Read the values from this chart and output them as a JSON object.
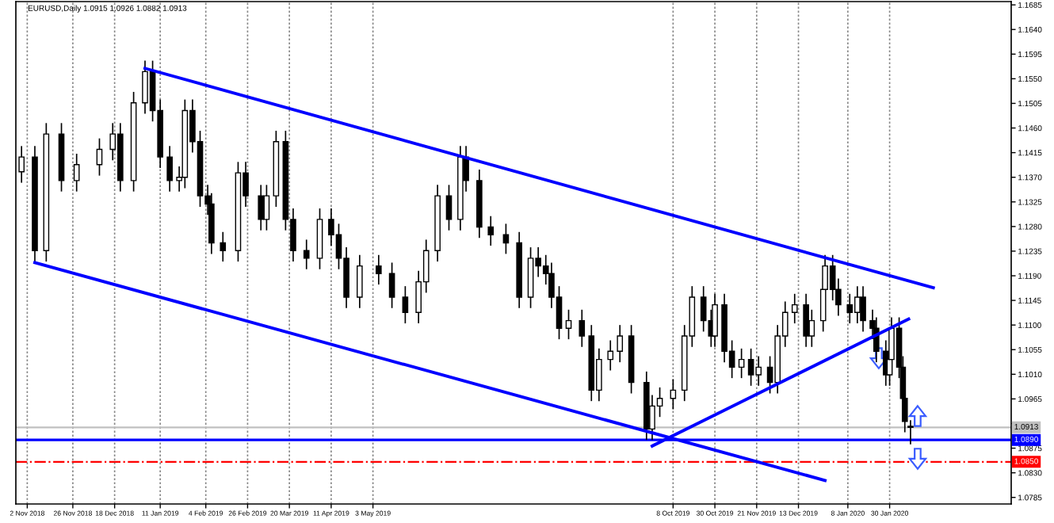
{
  "chart_data": {
    "type": "candlestick",
    "title": "EURUSD,Daily 1.0915 1.0926 1.0882 1.0913",
    "x": [
      "2018-10-30",
      "2018-11-06",
      "2018-11-12",
      "2018-11-20",
      "2018-11-28",
      "2018-12-10",
      "2018-12-17",
      "2018-12-21",
      "2018-12-28",
      "2019-01-03",
      "2019-01-07",
      "2019-01-11",
      "2019-01-16",
      "2019-01-21",
      "2019-01-24",
      "2019-01-28",
      "2019-02-01",
      "2019-02-05",
      "2019-02-07",
      "2019-02-13",
      "2019-02-21",
      "2019-02-25",
      "2019-03-05",
      "2019-03-08",
      "2019-03-13",
      "2019-03-18",
      "2019-03-22",
      "2019-03-29",
      "2019-04-05",
      "2019-04-11",
      "2019-04-15",
      "2019-04-19",
      "2019-04-26",
      "2019-05-06",
      "2019-05-13",
      "2019-05-20",
      "2019-05-27",
      "2019-05-31",
      "2019-06-06",
      "2019-06-12",
      "2019-06-18",
      "2019-06-21",
      "2019-06-28",
      "2019-07-04",
      "2019-07-12",
      "2019-07-19",
      "2019-07-25",
      "2019-07-29",
      "2019-08-02",
      "2019-08-05",
      "2019-08-09",
      "2019-08-14",
      "2019-08-21",
      "2019-08-26",
      "2019-08-30",
      "2019-09-05",
      "2019-09-10",
      "2019-09-16",
      "2019-09-24",
      "2019-09-27",
      "2019-10-01",
      "2019-10-08",
      "2019-10-14",
      "2019-10-18",
      "2019-10-24",
      "2019-10-28",
      "2019-10-30",
      "2019-11-04",
      "2019-11-08",
      "2019-11-13",
      "2019-11-18",
      "2019-11-22",
      "2019-11-28",
      "2019-12-02",
      "2019-12-06",
      "2019-12-11",
      "2019-12-17",
      "2019-12-20",
      "2019-12-26",
      "2019-12-27",
      "2019-12-31",
      "2020-01-03",
      "2020-01-09",
      "2020-01-13",
      "2020-01-16",
      "2020-01-21",
      "2020-01-23",
      "2020-01-28",
      "2020-01-30",
      "2020-01-31",
      "2020-02-04",
      "2020-02-06",
      "2020-02-07",
      "2020-02-10"
    ],
    "ohlc": [
      [
        1.138,
        1.1427,
        1.136,
        1.1407
      ],
      [
        1.1407,
        1.1427,
        1.1216,
        1.1236
      ],
      [
        1.1236,
        1.1469,
        1.1216,
        1.1449
      ],
      [
        1.1449,
        1.1469,
        1.1344,
        1.1364
      ],
      [
        1.1364,
        1.1413,
        1.1344,
        1.1393
      ],
      [
        1.1393,
        1.1441,
        1.1373,
        1.1421
      ],
      [
        1.1421,
        1.1469,
        1.1401,
        1.1449
      ],
      [
        1.1449,
        1.1469,
        1.1344,
        1.1364
      ],
      [
        1.1364,
        1.1526,
        1.1344,
        1.1506
      ],
      [
        1.1506,
        1.1583,
        1.1486,
        1.1563
      ],
      [
        1.1563,
        1.1583,
        1.1472,
        1.1492
      ],
      [
        1.1492,
        1.1512,
        1.1387,
        1.1407
      ],
      [
        1.1407,
        1.1427,
        1.1344,
        1.1364
      ],
      [
        1.1364,
        1.139,
        1.1344,
        1.137
      ],
      [
        1.137,
        1.1512,
        1.135,
        1.1492
      ],
      [
        1.1492,
        1.1512,
        1.1415,
        1.1435
      ],
      [
        1.1435,
        1.1455,
        1.1316,
        1.1336
      ],
      [
        1.1336,
        1.1356,
        1.1301,
        1.1321
      ],
      [
        1.1321,
        1.1341,
        1.123,
        1.125
      ],
      [
        1.125,
        1.127,
        1.1216,
        1.1236
      ],
      [
        1.1236,
        1.1398,
        1.1216,
        1.1378
      ],
      [
        1.1378,
        1.1398,
        1.1316,
        1.1336
      ],
      [
        1.1336,
        1.1356,
        1.1273,
        1.1293
      ],
      [
        1.1293,
        1.1356,
        1.1273,
        1.1336
      ],
      [
        1.1336,
        1.1455,
        1.1316,
        1.1435
      ],
      [
        1.1435,
        1.1455,
        1.1273,
        1.1293
      ],
      [
        1.1293,
        1.1313,
        1.1216,
        1.1236
      ],
      [
        1.1236,
        1.1256,
        1.1202,
        1.1222
      ],
      [
        1.1222,
        1.1313,
        1.1202,
        1.1293
      ],
      [
        1.1293,
        1.1313,
        1.1245,
        1.1265
      ],
      [
        1.1265,
        1.1285,
        1.1202,
        1.1222
      ],
      [
        1.1222,
        1.1242,
        1.1131,
        1.1151
      ],
      [
        1.1151,
        1.1228,
        1.1131,
        1.1208
      ],
      [
        1.1208,
        1.1228,
        1.1174,
        1.1194
      ],
      [
        1.1194,
        1.1214,
        1.1131,
        1.1151
      ],
      [
        1.1151,
        1.1171,
        1.1103,
        1.1123
      ],
      [
        1.1123,
        1.1199,
        1.1103,
        1.1179
      ],
      [
        1.1179,
        1.1256,
        1.1159,
        1.1236
      ],
      [
        1.1236,
        1.1356,
        1.1216,
        1.1336
      ],
      [
        1.1336,
        1.1356,
        1.1273,
        1.1293
      ],
      [
        1.1293,
        1.1427,
        1.1273,
        1.1407
      ],
      [
        1.1407,
        1.1427,
        1.1344,
        1.1364
      ],
      [
        1.1364,
        1.1384,
        1.1259,
        1.1279
      ],
      [
        1.1279,
        1.1299,
        1.1245,
        1.1265
      ],
      [
        1.1265,
        1.1285,
        1.123,
        1.125
      ],
      [
        1.125,
        1.127,
        1.1131,
        1.1151
      ],
      [
        1.1151,
        1.1242,
        1.1131,
        1.1222
      ],
      [
        1.1222,
        1.1242,
        1.1188,
        1.1208
      ],
      [
        1.1208,
        1.1228,
        1.1174,
        1.1194
      ],
      [
        1.1194,
        1.1214,
        1.1131,
        1.1151
      ],
      [
        1.1151,
        1.1171,
        1.1074,
        1.1094
      ],
      [
        1.1094,
        1.1128,
        1.1074,
        1.1108
      ],
      [
        1.1108,
        1.1128,
        1.106,
        1.108
      ],
      [
        1.108,
        1.11,
        1.0961,
        1.0981
      ],
      [
        1.0981,
        1.1057,
        1.0961,
        1.1037
      ],
      [
        1.1037,
        1.1072,
        1.1017,
        1.1052
      ],
      [
        1.1052,
        1.11,
        1.1032,
        1.108
      ],
      [
        1.108,
        1.11,
        1.0975,
        1.0995
      ],
      [
        1.0995,
        1.1015,
        1.089,
        1.091
      ],
      [
        1.091,
        1.0972,
        1.089,
        1.0952
      ],
      [
        1.0952,
        1.0986,
        1.0932,
        1.0966
      ],
      [
        1.0966,
        1.1001,
        1.0946,
        1.0981
      ],
      [
        1.0981,
        1.11,
        1.0961,
        1.108
      ],
      [
        1.108,
        1.1171,
        1.106,
        1.1151
      ],
      [
        1.1151,
        1.1171,
        1.1088,
        1.1108
      ],
      [
        1.1108,
        1.1128,
        1.106,
        1.108
      ],
      [
        1.108,
        1.1157,
        1.106,
        1.1137
      ],
      [
        1.1137,
        1.1157,
        1.1032,
        1.1052
      ],
      [
        1.1052,
        1.1072,
        1.1003,
        1.1023
      ],
      [
        1.1023,
        1.1057,
        1.1003,
        1.1037
      ],
      [
        1.1037,
        1.1057,
        1.0989,
        1.1009
      ],
      [
        1.1009,
        1.1043,
        1.0989,
        1.1023
      ],
      [
        1.1023,
        1.1043,
        1.0975,
        1.0995
      ],
      [
        1.0995,
        1.11,
        1.0975,
        1.108
      ],
      [
        1.108,
        1.1143,
        1.106,
        1.1123
      ],
      [
        1.1123,
        1.1157,
        1.1103,
        1.1137
      ],
      [
        1.1137,
        1.1157,
        1.106,
        1.108
      ],
      [
        1.108,
        1.1128,
        1.106,
        1.1108
      ],
      [
        1.1108,
        1.1185,
        1.1088,
        1.1165
      ],
      [
        1.1165,
        1.1228,
        1.1145,
        1.1208
      ],
      [
        1.1208,
        1.1228,
        1.1145,
        1.1165
      ],
      [
        1.1165,
        1.1185,
        1.1117,
        1.1137
      ],
      [
        1.1137,
        1.1157,
        1.1103,
        1.1123
      ],
      [
        1.1123,
        1.1171,
        1.1103,
        1.1151
      ],
      [
        1.1151,
        1.1171,
        1.1088,
        1.1108
      ],
      [
        1.1108,
        1.1128,
        1.1074,
        1.1094
      ],
      [
        1.1094,
        1.1114,
        1.1032,
        1.1052
      ],
      [
        1.1052,
        1.1072,
        1.0989,
        1.1009
      ],
      [
        1.1009,
        1.1057,
        1.0989,
        1.1037
      ],
      [
        1.1037,
        1.1114,
        1.1017,
        1.1094
      ],
      [
        1.1094,
        1.1114,
        1.1003,
        1.1023
      ],
      [
        1.1023,
        1.1043,
        1.0946,
        1.0966
      ],
      [
        1.0966,
        1.0986,
        1.0904,
        1.0924
      ],
      [
        1.0915,
        1.0926,
        1.0882,
        1.0913
      ]
    ],
    "colors": [
      "#ffffff",
      "#000000",
      "#ffffff",
      "#000000",
      "#ffffff",
      "#ffffff",
      "#ffffff",
      "#000000",
      "#ffffff",
      "#ffffff",
      "#000000",
      "#000000",
      "#000000",
      "#ffffff",
      "#ffffff",
      "#000000",
      "#000000",
      "#000000",
      "#000000",
      "#000000",
      "#ffffff",
      "#000000",
      "#000000",
      "#ffffff",
      "#ffffff",
      "#000000",
      "#000000",
      "#000000",
      "#ffffff",
      "#000000",
      "#000000",
      "#000000",
      "#ffffff",
      "#000000",
      "#000000",
      "#000000",
      "#ffffff",
      "#ffffff",
      "#ffffff",
      "#000000",
      "#ffffff",
      "#000000",
      "#000000",
      "#000000",
      "#000000",
      "#000000",
      "#ffffff",
      "#000000",
      "#000000",
      "#000000",
      "#000000",
      "#ffffff",
      "#000000",
      "#000000",
      "#ffffff",
      "#ffffff",
      "#ffffff",
      "#000000",
      "#000000",
      "#ffffff",
      "#ffffff",
      "#ffffff",
      "#ffffff",
      "#ffffff",
      "#000000",
      "#000000",
      "#ffffff",
      "#000000",
      "#000000",
      "#ffffff",
      "#000000",
      "#ffffff",
      "#000000",
      "#ffffff",
      "#ffffff",
      "#ffffff",
      "#000000",
      "#ffffff",
      "#ffffff",
      "#ffffff",
      "#000000",
      "#000000",
      "#000000",
      "#ffffff",
      "#000000",
      "#000000",
      "#000000",
      "#000000",
      "#ffffff",
      "#ffffff",
      "#000000",
      "#000000",
      "#000000",
      "#000000"
    ],
    "series": [
      {
        "type": "line",
        "color": "#0000ff",
        "x": [
          "2019-01-03",
          "2020-02-22"
        ],
        "values": [
          1.1569,
          1.1168
        ]
      },
      {
        "type": "line",
        "color": "#0000ff",
        "x": [
          "2018-11-06",
          "2019-12-27"
        ],
        "values": [
          1.1214,
          1.0816
        ]
      },
      {
        "type": "line",
        "color": "#0000ff",
        "x": [
          "2019-09-27",
          "2020-02-09"
        ],
        "values": [
          1.0879,
          1.1111
        ]
      }
    ],
    "ref_lines": [
      {
        "axis": "y",
        "value": 1.0913,
        "label": "1.0913",
        "color": "#c0c0c0",
        "line_style": "solid"
      },
      {
        "axis": "y",
        "value": 1.089,
        "label": "1.0890",
        "color": "#0000ff",
        "line_style": "solid"
      },
      {
        "axis": "y",
        "value": 1.085,
        "label": "1.0850",
        "color": "#ff0000",
        "line_style": "dashed"
      }
    ],
    "xlim": [
      "2018-10-27",
      "2020-04-03"
    ],
    "xticks": [
      {
        "value": "2018-11-02",
        "label": "2 Nov 2018"
      },
      {
        "value": "2018-11-26",
        "label": "26 Nov 2018"
      },
      {
        "value": "2018-12-18",
        "label": "18 Dec 2018"
      },
      {
        "value": "2019-01-11",
        "label": "11 Jan 2019"
      },
      {
        "value": "2019-02-04",
        "label": "4 Feb 2019"
      },
      {
        "value": "2019-02-26",
        "label": "26 Feb 2019"
      },
      {
        "value": "2019-03-20",
        "label": "20 Mar 2019"
      },
      {
        "value": "2019-04-11",
        "label": "11 Apr 2019"
      },
      {
        "value": "2019-05-03",
        "label": "3 May 2019"
      },
      {
        "value": "2019-10-08",
        "label": "8 Oct 2019"
      },
      {
        "value": "2019-10-30",
        "label": "30 Oct 2019"
      },
      {
        "value": "2019-11-21",
        "label": "21 Nov 2019"
      },
      {
        "value": "2019-12-13",
        "label": "13 Dec 2019"
      },
      {
        "value": "2020-01-08",
        "label": "8 Jan 2020"
      },
      {
        "value": "2020-01-30",
        "label": "30 Jan 2020"
      }
    ],
    "ylim": [
      1.0773,
      1.1691
    ],
    "yticks": [
      1.1685,
      {
        "value": 1.164,
        "label": "1.1640"
      },
      1.1595,
      {
        "value": 1.155,
        "label": "1.1550"
      },
      1.1505,
      {
        "value": 1.146,
        "label": "1.1460"
      },
      1.1415,
      {
        "value": 1.137,
        "label": "1.1370"
      },
      1.1325,
      {
        "value": 1.128,
        "label": "1.1280"
      },
      1.1235,
      {
        "value": 1.119,
        "label": "1.1190"
      },
      1.1145,
      {
        "value": 1.11,
        "label": "1.1100"
      },
      1.1055,
      {
        "value": 1.101,
        "label": "1.1010"
      },
      1.0965,
      {
        "value": 1.092,
        "label": null
      },
      1.0875,
      {
        "value": 1.083,
        "label": "1.0830"
      },
      1.0785
    ],
    "grid": "x"
  }
}
